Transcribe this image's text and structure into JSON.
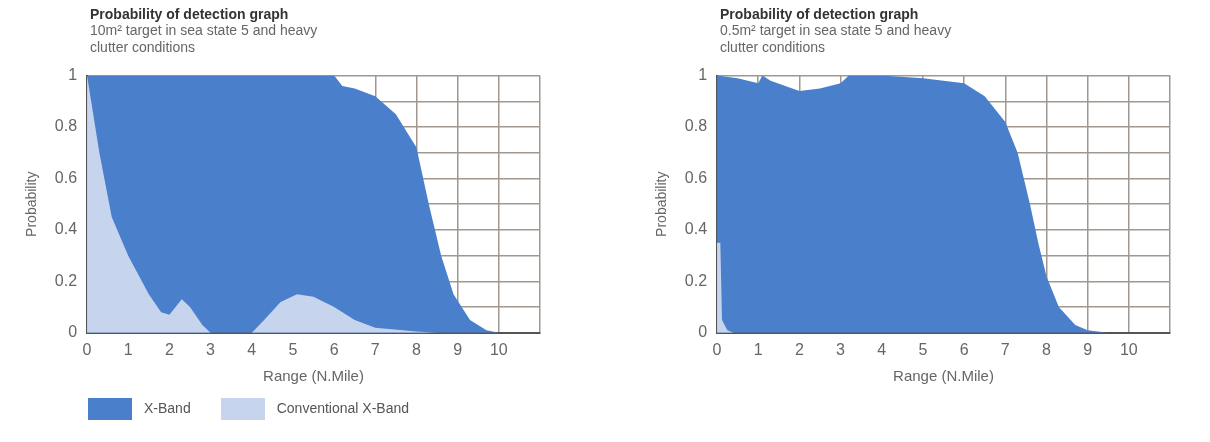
{
  "chart_data": [
    {
      "type": "area",
      "title": "Probability of detection graph",
      "subtitle": "10m² target in sea state 5 and heavy clutter conditions",
      "xlabel": "Range (N.Mile)",
      "ylabel": "Probability",
      "xlim": [
        0,
        11
      ],
      "xticks": [
        0,
        1,
        2,
        3,
        4,
        5,
        6,
        7,
        8,
        9,
        10,
        {
          "value": 11,
          "label": null
        }
      ],
      "ylim": [
        0,
        1
      ],
      "yticks": [
        0,
        {
          "value": 0.1,
          "label": null
        },
        0.2,
        {
          "value": 0.3,
          "label": null
        },
        0.4,
        {
          "value": 0.5,
          "label": null
        },
        0.6,
        {
          "value": 0.7,
          "label": null
        },
        0.8,
        {
          "value": 0.9,
          "label": null
        },
        1
      ],
      "grid": true,
      "legend": "bottom",
      "series": [
        {
          "name": "X-Band",
          "color": "#4a7fcb",
          "x": [
            0,
            1,
            2,
            3,
            4,
            5,
            6,
            6.2,
            6.5,
            7,
            7.5,
            8,
            8.3,
            8.6,
            8.9,
            9.3,
            9.7,
            10
          ],
          "values": [
            1,
            1,
            1,
            1,
            1,
            1,
            1,
            0.96,
            0.95,
            0.92,
            0.85,
            0.72,
            0.5,
            0.3,
            0.15,
            0.05,
            0.01,
            0
          ]
        },
        {
          "name": "Conventional X-Band",
          "color": "#c6d4ee",
          "x": [
            0,
            0.3,
            0.6,
            1,
            1.5,
            1.8,
            2,
            2.3,
            2.5,
            2.8,
            3,
            4,
            4.3,
            4.7,
            5.1,
            5.5,
            6,
            6.5,
            7,
            8,
            8.5
          ],
          "values": [
            1,
            0.7,
            0.45,
            0.3,
            0.15,
            0.08,
            0.07,
            0.13,
            0.1,
            0.03,
            0,
            0,
            0.05,
            0.12,
            0.15,
            0.14,
            0.1,
            0.05,
            0.02,
            0.005,
            0
          ]
        }
      ]
    },
    {
      "type": "area",
      "title": "Probability of detection graph",
      "subtitle": "0.5m² target in sea state 5 and heavy clutter conditions",
      "xlabel": "Range (N.Mile)",
      "ylabel": "Probability",
      "xlim": [
        0,
        11
      ],
      "xticks": [
        0,
        1,
        2,
        3,
        4,
        5,
        6,
        7,
        8,
        9,
        10,
        {
          "value": 11,
          "label": null
        }
      ],
      "ylim": [
        0,
        1
      ],
      "yticks": [
        0,
        {
          "value": 0.1,
          "label": null
        },
        0.2,
        {
          "value": 0.3,
          "label": null
        },
        0.4,
        {
          "value": 0.5,
          "label": null
        },
        0.6,
        {
          "value": 0.7,
          "label": null
        },
        0.8,
        {
          "value": 0.9,
          "label": null
        },
        1
      ],
      "grid": true,
      "series": [
        {
          "color": "#4a7fcb",
          "x": [
            0,
            0.5,
            1,
            1.1,
            1.3,
            2,
            2.5,
            3,
            3.2,
            4,
            5,
            5.5,
            6,
            6.5,
            7,
            7.3,
            7.6,
            7.8,
            8,
            8.3,
            8.7,
            9,
            9.5
          ],
          "values": [
            1,
            0.99,
            0.97,
            1,
            0.98,
            0.94,
            0.95,
            0.97,
            1,
            1,
            0.99,
            0.98,
            0.97,
            0.92,
            0.82,
            0.7,
            0.5,
            0.35,
            0.22,
            0.1,
            0.03,
            0.01,
            0
          ]
        },
        {
          "color": "#c6d4ee",
          "x": [
            0,
            0.08,
            0.12,
            0.25,
            0.4
          ],
          "values": [
            0.35,
            0.35,
            0.05,
            0.01,
            0
          ]
        }
      ]
    }
  ]
}
